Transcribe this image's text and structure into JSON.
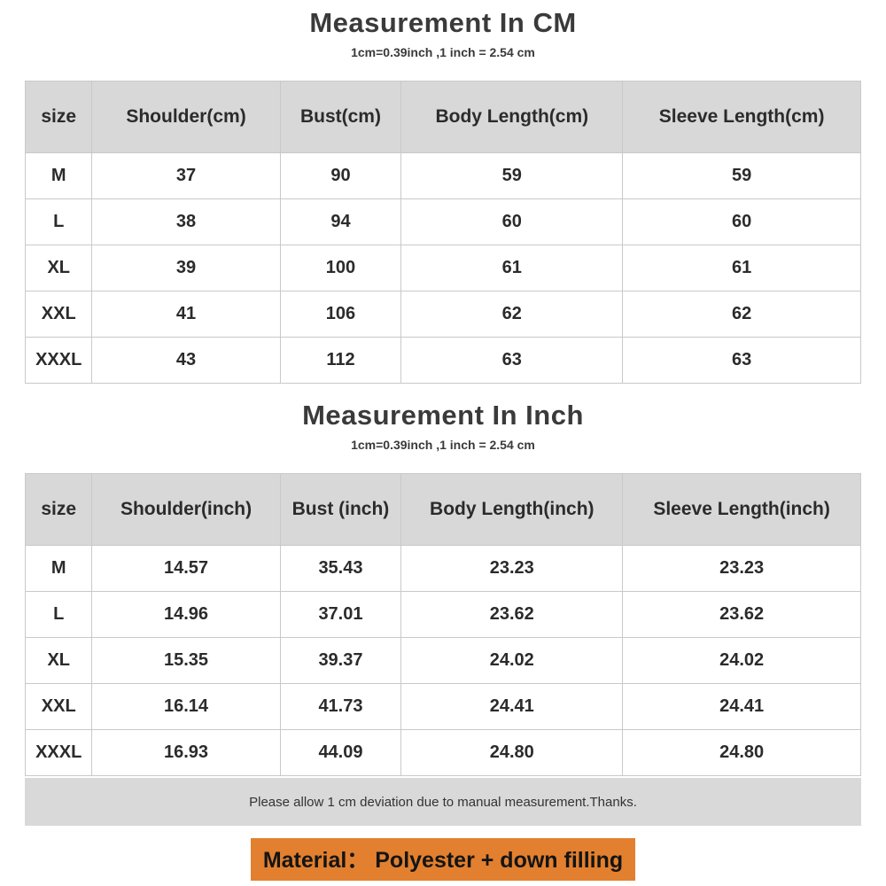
{
  "colors": {
    "header_bg": "#d8d8d8",
    "note_bg": "#d9d9d9",
    "material_highlight_bg": "#e2802f",
    "border": "#c9c9c9",
    "text": "#333333"
  },
  "tables": [
    {
      "title": "Measurement In CM",
      "subtitle": "1cm=0.39inch ,1 inch = 2.54 cm",
      "headers": [
        "size",
        "Shoulder(cm)",
        "Bust(cm)",
        "Body Length(cm)",
        "Sleeve Length(cm)"
      ],
      "rows": [
        [
          "M",
          "37",
          "90",
          "59",
          "59"
        ],
        [
          "L",
          "38",
          "94",
          "60",
          "60"
        ],
        [
          "XL",
          "39",
          "100",
          "61",
          "61"
        ],
        [
          "XXL",
          "41",
          "106",
          "62",
          "62"
        ],
        [
          "XXXL",
          "43",
          "112",
          "63",
          "63"
        ]
      ]
    },
    {
      "title": "Measurement In Inch",
      "subtitle": "1cm=0.39inch ,1 inch = 2.54 cm",
      "headers": [
        "size",
        "Shoulder(inch)",
        "Bust (inch)",
        "Body Length(inch)",
        "Sleeve Length(inch)"
      ],
      "rows": [
        [
          "M",
          "14.57",
          "35.43",
          "23.23",
          "23.23"
        ],
        [
          "L",
          "14.96",
          "37.01",
          "23.62",
          "23.62"
        ],
        [
          "XL",
          "15.35",
          "39.37",
          "24.02",
          "24.02"
        ],
        [
          "XXL",
          "16.14",
          "41.73",
          "24.41",
          "24.41"
        ],
        [
          "XXXL",
          "16.93",
          "44.09",
          "24.80",
          "24.80"
        ]
      ]
    }
  ],
  "footer": {
    "note": "Please allow 1 cm deviation due to manual measurement.Thanks.",
    "material": "Material：  Polyester + down filling"
  }
}
